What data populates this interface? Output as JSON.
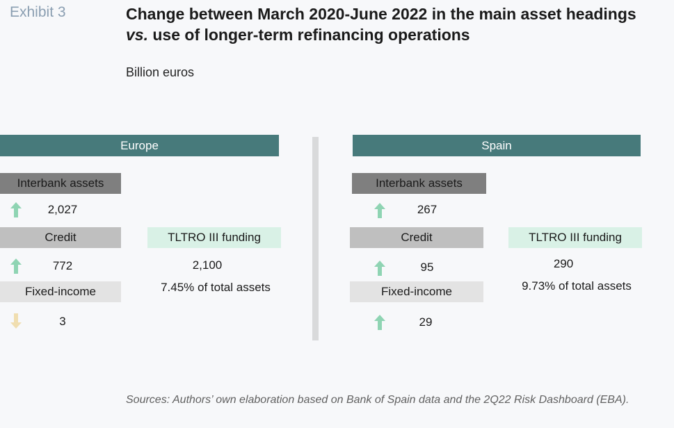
{
  "exhibit_label": "Exhibit 3",
  "title": {
    "part1": "Change between March 2020-June 2022 in the main asset headings ",
    "vs": "vs.",
    "part2": " use of longer-term refinancing operations"
  },
  "unit": "Billion euros",
  "europe": {
    "region": "Europe",
    "interbank_label": "Interbank assets",
    "interbank_value": "2,027",
    "interbank_direction": "up",
    "credit_label": "Credit",
    "credit_value": "772",
    "credit_direction": "up",
    "fixed_income_label": "Fixed-income",
    "fixed_income_value": "3",
    "fixed_income_direction": "down",
    "tltro_label": "TLTRO III funding",
    "tltro_value": "2,100",
    "tltro_share": "7.45% of total assets"
  },
  "spain": {
    "region": "Spain",
    "interbank_label": "Interbank assets",
    "interbank_value": "267",
    "interbank_direction": "up",
    "credit_label": "Credit",
    "credit_value": "95",
    "credit_direction": "up",
    "fixed_income_label": "Fixed-income",
    "fixed_income_value": "29",
    "fixed_income_direction": "up",
    "tltro_label": "TLTRO III funding",
    "tltro_value": "290",
    "tltro_share": "9.73% of total assets"
  },
  "colors": {
    "region_bar": "#477a7b",
    "up_arrow": "#8fd4b3",
    "down_arrow": "#f0deb0",
    "tltro_bg": "#d9f1e6"
  },
  "source": "Sources: Authors’ own elaboration based on Bank of Spain data and the 2Q22 Risk Dashboard (EBA)."
}
